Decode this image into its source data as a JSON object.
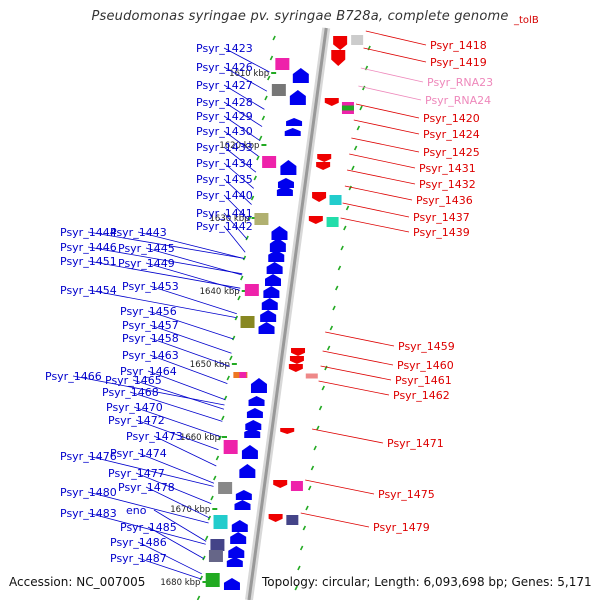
{
  "title": "Pseudomonas syringae pv. syringae B728a, complete genome",
  "corner_label": "_tolB",
  "footer": {
    "accession": "Accession: NC_007005",
    "summary": "Topology: circular; Length: 6,093,698 bp; Genes: 5,171"
  },
  "scale_marks": [
    "1610 kbp",
    "1620 kbp",
    "1630 kbp",
    "1640 kbp",
    "1650 kbp",
    "1660 kbp",
    "1670 kbp",
    "1680 kbp"
  ],
  "left_genes": [
    "Psyr_1423",
    "Psyr_1426",
    "Psyr_1427",
    "Psyr_1428",
    "Psyr_1429",
    "Psyr_1430",
    "Psyr_1433",
    "Psyr_1434",
    "Psyr_1435",
    "Psyr_1440",
    "Psyr_1441",
    "Psyr_1442",
    "Psyr_1444",
    "Psyr_1443",
    "Psyr_1446",
    "Psyr_1445",
    "Psyr_1451",
    "Psyr_1449",
    "Psyr_1454",
    "Psyr_1453",
    "Psyr_1456",
    "Psyr_1457",
    "Psyr_1458",
    "Psyr_1463",
    "Psyr_1464",
    "Psyr_1466",
    "Psyr_1465",
    "Psyr_1468",
    "Psyr_1470",
    "Psyr_1472",
    "Psyr_1473",
    "Psyr_1474",
    "Psyr_1476",
    "Psyr_1477",
    "Psyr_1478",
    "Psyr_1480",
    "Psyr_1483",
    "eno",
    "Psyr_1485",
    "Psyr_1486",
    "Psyr_1487"
  ],
  "right_genes": [
    "Psyr_1418",
    "Psyr_1419",
    "Psyr_RNA23",
    "Psyr_RNA24",
    "Psyr_1420",
    "Psyr_1424",
    "Psyr_1425",
    "Psyr_1431",
    "Psyr_1432",
    "Psyr_1436",
    "Psyr_1437",
    "Psyr_1439",
    "Psyr_1459",
    "Psyr_1460",
    "Psyr_1461",
    "Psyr_1462",
    "Psyr_1471",
    "Psyr_1475",
    "Psyr_1479"
  ],
  "colors": {
    "forward": "#0000ee",
    "reverse": "#ee0000",
    "rna": "#ee88bb",
    "backbone": "#999999",
    "tick": "#22aa22"
  }
}
